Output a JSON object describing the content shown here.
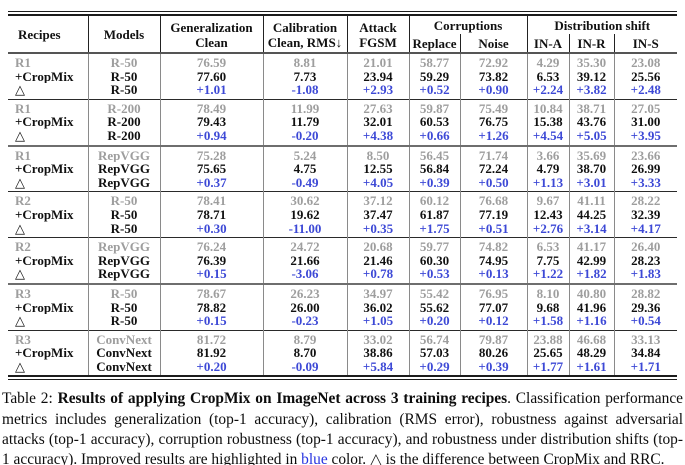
{
  "colors": {
    "blue_table": "#3d49d6",
    "blue_caption": "#2633e0",
    "gray_muted": "#9e9e9e"
  },
  "table": {
    "header": {
      "recipes": "Recipes",
      "models": "Models",
      "generalization_l1": "Generalization",
      "generalization_l2": "Clean",
      "calibration_l1": "Calibration",
      "calibration_l2": "Clean, RMS↓",
      "attack_l1": "Attack",
      "attack_l2": "FGSM",
      "corruptions": "Corruptions",
      "sub_replace": "Replace",
      "sub_noise": "Noise",
      "dist_shift": "Distribution shift",
      "sub_ina": "IN-A",
      "sub_inr": "IN-R",
      "sub_ins": "IN-S"
    },
    "labels": {
      "cropmix": "+CropMix",
      "delta": "△"
    },
    "groups": [
      {
        "recipe": "R1",
        "model": "R-50",
        "sep": "none",
        "baseline": [
          "76.59",
          "8.81",
          "21.01",
          "58.77",
          "72.92",
          "4.29",
          "35.30",
          "23.08"
        ],
        "cropmix": [
          "77.60",
          "7.73",
          "23.94",
          "59.29",
          "73.82",
          "6.53",
          "39.12",
          "25.56"
        ],
        "delta": [
          "+1.01",
          "-1.08",
          "+2.93",
          "+0.52",
          "+0.90",
          "+2.24",
          "+3.82",
          "+2.48"
        ]
      },
      {
        "recipe": "R1",
        "model": "R-200",
        "sep": "single",
        "baseline": [
          "78.49",
          "11.99",
          "27.63",
          "59.87",
          "75.49",
          "10.84",
          "38.71",
          "27.05"
        ],
        "cropmix": [
          "79.43",
          "11.79",
          "32.01",
          "60.53",
          "76.75",
          "15.38",
          "43.76",
          "31.00"
        ],
        "delta": [
          "+0.94",
          "-0.20",
          "+4.38",
          "+0.66",
          "+1.26",
          "+4.54",
          "+5.05",
          "+3.95"
        ]
      },
      {
        "recipe": "R1",
        "model": "RepVGG",
        "sep": "thick",
        "baseline": [
          "75.28",
          "5.24",
          "8.50",
          "56.45",
          "71.74",
          "3.66",
          "35.69",
          "23.66"
        ],
        "cropmix": [
          "75.65",
          "4.75",
          "12.55",
          "56.84",
          "72.24",
          "4.79",
          "38.70",
          "26.99"
        ],
        "delta": [
          "+0.37",
          "-0.49",
          "+4.05",
          "+0.39",
          "+0.50",
          "+1.13",
          "+3.01",
          "+3.33"
        ]
      },
      {
        "recipe": "R2",
        "model": "R-50",
        "sep": "single",
        "baseline": [
          "78.41",
          "30.62",
          "37.12",
          "60.12",
          "76.68",
          "9.67",
          "41.11",
          "28.22"
        ],
        "cropmix": [
          "78.71",
          "19.62",
          "37.47",
          "61.87",
          "77.19",
          "12.43",
          "44.25",
          "32.39"
        ],
        "delta": [
          "+0.30",
          "-11.00",
          "+0.35",
          "+1.75",
          "+0.51",
          "+2.76",
          "+3.14",
          "+4.17"
        ]
      },
      {
        "recipe": "R2",
        "model": "RepVGG",
        "sep": "single",
        "baseline": [
          "76.24",
          "24.72",
          "20.68",
          "59.77",
          "74.82",
          "6.53",
          "41.17",
          "26.40"
        ],
        "cropmix": [
          "76.39",
          "21.66",
          "21.46",
          "60.30",
          "74.95",
          "7.75",
          "42.99",
          "28.23"
        ],
        "delta": [
          "+0.15",
          "-3.06",
          "+0.78",
          "+0.53",
          "+0.13",
          "+1.22",
          "+1.82",
          "+1.83"
        ]
      },
      {
        "recipe": "R3",
        "model": "R-50",
        "sep": "thick",
        "baseline": [
          "78.67",
          "26.23",
          "34.97",
          "55.42",
          "76.95",
          "8.10",
          "40.80",
          "28.82"
        ],
        "cropmix": [
          "78.82",
          "26.00",
          "36.02",
          "55.62",
          "77.07",
          "9.68",
          "41.96",
          "29.36"
        ],
        "delta": [
          "+0.15",
          "-0.23",
          "+1.05",
          "+0.20",
          "+0.12",
          "+1.58",
          "+1.16",
          "+0.54"
        ]
      },
      {
        "recipe": "R3",
        "model": "ConvNext",
        "sep": "single",
        "baseline": [
          "81.72",
          "8.79",
          "33.02",
          "56.74",
          "79.87",
          "23.88",
          "46.68",
          "33.13"
        ],
        "cropmix": [
          "81.92",
          "8.70",
          "38.86",
          "57.03",
          "80.26",
          "25.65",
          "48.29",
          "34.84"
        ],
        "delta": [
          "+0.20",
          "-0.09",
          "+5.84",
          "+0.29",
          "+0.39",
          "+1.77",
          "+1.61",
          "+1.71"
        ]
      }
    ]
  },
  "caption": {
    "prefix": "Table 2: ",
    "bold_title": "Results of applying CropMix on ImageNet across 3 training recipes",
    "body_1": ". Classification performance metrics includes generalization (top-1 accuracy), calibration (RMS error), robustness against adversarial attacks (top-1 accuracy), corruption robustness (top-1 accuracy), and robustness under distribution shifts (top-1 accuracy). Improved results are highlighted in ",
    "blue_word": "blue",
    "body_2": " color. △ is the difference between CropMix and RRC."
  }
}
